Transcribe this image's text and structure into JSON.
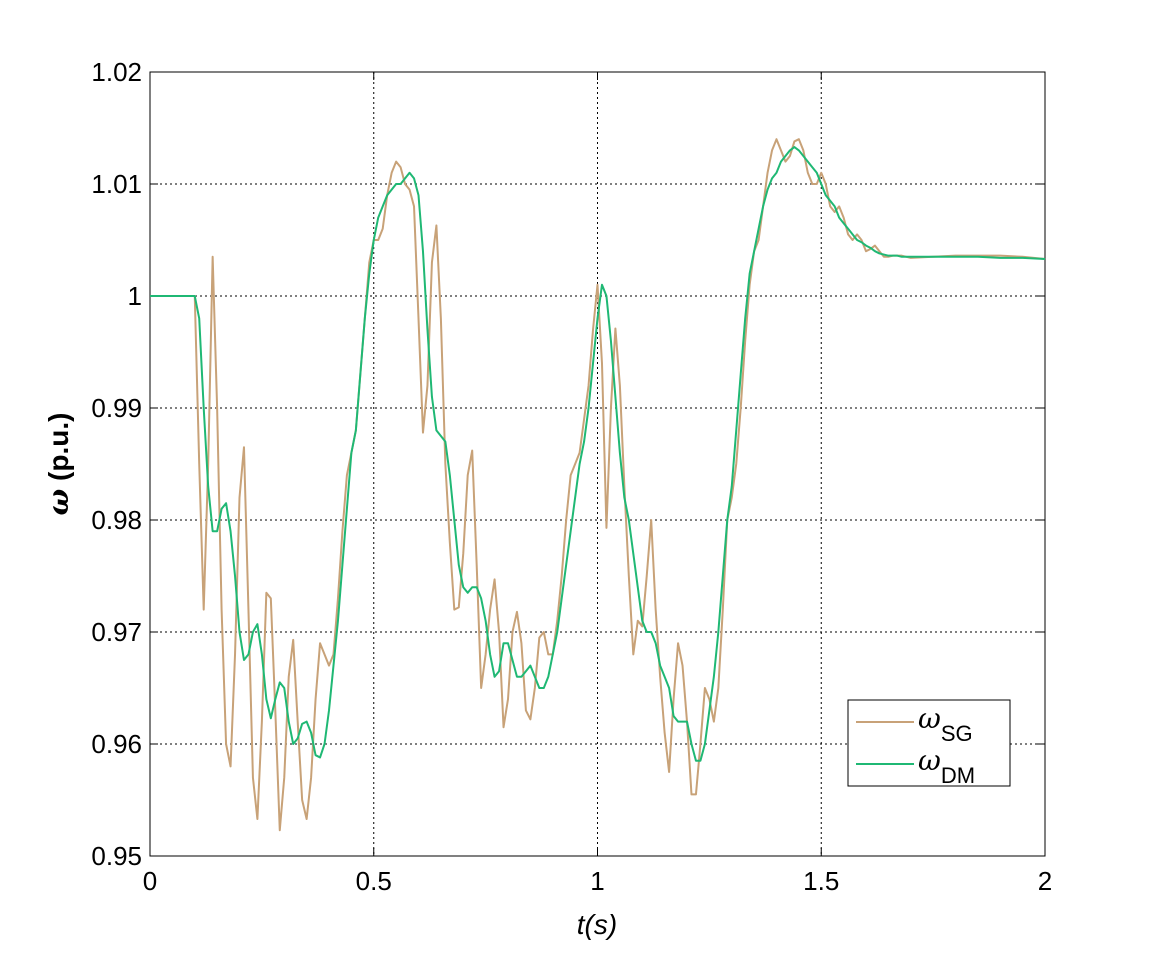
{
  "chart_data": {
    "type": "line",
    "xlabel": "t(s)",
    "ylabel": "ω (p.u.)",
    "xlim": [
      0,
      2
    ],
    "ylim": [
      0.95,
      1.02
    ],
    "xticks": [
      0,
      0.5,
      1,
      1.5,
      2
    ],
    "yticks": [
      0.95,
      0.96,
      0.97,
      0.98,
      0.99,
      1,
      1.01,
      1.02
    ],
    "grid": true,
    "legend": "lower right",
    "x": [
      0,
      0.05,
      0.1,
      0.11,
      0.12,
      0.13,
      0.14,
      0.15,
      0.16,
      0.17,
      0.18,
      0.19,
      0.2,
      0.21,
      0.22,
      0.23,
      0.24,
      0.25,
      0.26,
      0.27,
      0.28,
      0.29,
      0.3,
      0.31,
      0.32,
      0.33,
      0.34,
      0.35,
      0.36,
      0.37,
      0.38,
      0.39,
      0.4,
      0.41,
      0.42,
      0.43,
      0.44,
      0.45,
      0.46,
      0.47,
      0.48,
      0.49,
      0.5,
      0.51,
      0.52,
      0.53,
      0.54,
      0.55,
      0.56,
      0.57,
      0.58,
      0.59,
      0.6,
      0.61,
      0.62,
      0.63,
      0.64,
      0.65,
      0.66,
      0.67,
      0.68,
      0.69,
      0.7,
      0.71,
      0.72,
      0.73,
      0.74,
      0.75,
      0.76,
      0.77,
      0.78,
      0.79,
      0.8,
      0.81,
      0.82,
      0.83,
      0.84,
      0.85,
      0.86,
      0.87,
      0.88,
      0.89,
      0.9,
      0.91,
      0.92,
      0.93,
      0.94,
      0.95,
      0.96,
      0.97,
      0.98,
      0.99,
      1.0,
      1.01,
      1.02,
      1.03,
      1.04,
      1.05,
      1.06,
      1.07,
      1.08,
      1.09,
      1.1,
      1.11,
      1.12,
      1.13,
      1.14,
      1.15,
      1.16,
      1.17,
      1.18,
      1.19,
      1.2,
      1.21,
      1.22,
      1.23,
      1.24,
      1.25,
      1.26,
      1.27,
      1.28,
      1.29,
      1.3,
      1.31,
      1.32,
      1.33,
      1.34,
      1.35,
      1.36,
      1.37,
      1.38,
      1.39,
      1.4,
      1.41,
      1.42,
      1.43,
      1.44,
      1.45,
      1.46,
      1.47,
      1.48,
      1.49,
      1.5,
      1.51,
      1.52,
      1.53,
      1.54,
      1.55,
      1.56,
      1.57,
      1.58,
      1.59,
      1.6,
      1.61,
      1.62,
      1.63,
      1.64,
      1.65,
      1.66,
      1.67,
      1.68,
      1.69,
      1.7,
      1.75,
      1.8,
      1.85,
      1.9,
      1.95,
      2.0
    ],
    "series": [
      {
        "name": "ωSG",
        "color": "#c8a278",
        "values": [
          1,
          1,
          1,
          0.985,
          0.972,
          0.985,
          1.0035,
          0.99,
          0.972,
          0.96,
          0.958,
          0.968,
          0.982,
          0.9865,
          0.972,
          0.957,
          0.9533,
          0.962,
          0.9735,
          0.973,
          0.963,
          0.9523,
          0.957,
          0.966,
          0.9693,
          0.962,
          0.955,
          0.9533,
          0.957,
          0.964,
          0.969,
          0.968,
          0.967,
          0.968,
          0.973,
          0.979,
          0.984,
          0.986,
          0.988,
          0.993,
          0.998,
          1.003,
          1.005,
          1.005,
          1.006,
          1.009,
          1.011,
          1.012,
          1.0115,
          1.01,
          1.0095,
          1.008,
          0.998,
          0.9878,
          0.992,
          1.003,
          1.0063,
          0.998,
          0.985,
          0.978,
          0.972,
          0.9722,
          0.977,
          0.984,
          0.9862,
          0.976,
          0.965,
          0.968,
          0.972,
          0.9747,
          0.97,
          0.9615,
          0.964,
          0.97,
          0.9718,
          0.969,
          0.963,
          0.9622,
          0.965,
          0.9695,
          0.97,
          0.968,
          0.968,
          0.971,
          0.975,
          0.98,
          0.984,
          0.985,
          0.986,
          0.989,
          0.992,
          0.997,
          1.001,
          0.994,
          0.9793,
          0.99,
          0.9971,
          0.992,
          0.983,
          0.975,
          0.968,
          0.971,
          0.9705,
          0.975,
          0.98,
          0.972,
          0.966,
          0.961,
          0.9575,
          0.964,
          0.969,
          0.967,
          0.962,
          0.9555,
          0.9555,
          0.96,
          0.965,
          0.964,
          0.962,
          0.965,
          0.972,
          0.98,
          0.982,
          0.985,
          0.99,
          0.996,
          1.001,
          1.004,
          1.005,
          1.008,
          1.011,
          1.013,
          1.014,
          1.013,
          1.012,
          1.0125,
          1.0138,
          1.014,
          1.013,
          1.011,
          1.01,
          1.01,
          1.011,
          1.01,
          1.008,
          1.0075,
          1.008,
          1.007,
          1.0055,
          1.005,
          1.0055,
          1.005,
          1.004,
          1.0042,
          1.0045,
          1.004,
          1.0035,
          1.0035,
          1.0036,
          1.0036,
          1.0036,
          1.0035,
          1.0034,
          1.0035,
          1.0036,
          1.0036,
          1.0036,
          1.0035,
          1.0033
        ]
      },
      {
        "name": "ωDM",
        "color": "#1fb874",
        "values": [
          1,
          1,
          1,
          0.998,
          0.99,
          0.983,
          0.979,
          0.979,
          0.981,
          0.9815,
          0.979,
          0.975,
          0.97,
          0.9675,
          0.968,
          0.97,
          0.9707,
          0.968,
          0.964,
          0.9623,
          0.964,
          0.9655,
          0.965,
          0.962,
          0.96,
          0.9605,
          0.9618,
          0.962,
          0.961,
          0.959,
          0.9588,
          0.96,
          0.963,
          0.967,
          0.971,
          0.976,
          0.981,
          0.986,
          0.988,
          0.993,
          0.998,
          1.002,
          1.005,
          1.007,
          1.008,
          1.009,
          1.0095,
          1.01,
          1.01,
          1.0105,
          1.011,
          1.0105,
          1.009,
          1.004,
          0.997,
          0.991,
          0.988,
          0.9875,
          0.987,
          0.984,
          0.98,
          0.976,
          0.974,
          0.9735,
          0.974,
          0.974,
          0.973,
          0.971,
          0.968,
          0.966,
          0.9665,
          0.969,
          0.969,
          0.9675,
          0.966,
          0.966,
          0.9665,
          0.967,
          0.966,
          0.965,
          0.965,
          0.966,
          0.968,
          0.97,
          0.973,
          0.976,
          0.979,
          0.982,
          0.985,
          0.987,
          0.99,
          0.994,
          0.998,
          1.001,
          1.0,
          0.996,
          0.991,
          0.986,
          0.982,
          0.98,
          0.977,
          0.974,
          0.971,
          0.97,
          0.97,
          0.969,
          0.967,
          0.966,
          0.965,
          0.9625,
          0.962,
          0.962,
          0.962,
          0.96,
          0.9585,
          0.9585,
          0.96,
          0.963,
          0.966,
          0.97,
          0.975,
          0.98,
          0.983,
          0.988,
          0.993,
          0.998,
          1.002,
          1.004,
          1.006,
          1.008,
          1.0095,
          1.0105,
          1.011,
          1.012,
          1.0125,
          1.013,
          1.0133,
          1.013,
          1.0125,
          1.012,
          1.0115,
          1.011,
          1.01,
          1.009,
          1.0085,
          1.008,
          1.007,
          1.0065,
          1.006,
          1.0055,
          1.005,
          1.0048,
          1.0045,
          1.0043,
          1.004,
          1.0038,
          1.0037,
          1.0036,
          1.0036,
          1.0036,
          1.0035,
          1.0035,
          1.0035,
          1.0035,
          1.0035,
          1.0035,
          1.0034,
          1.0034,
          1.0033
        ]
      }
    ]
  }
}
